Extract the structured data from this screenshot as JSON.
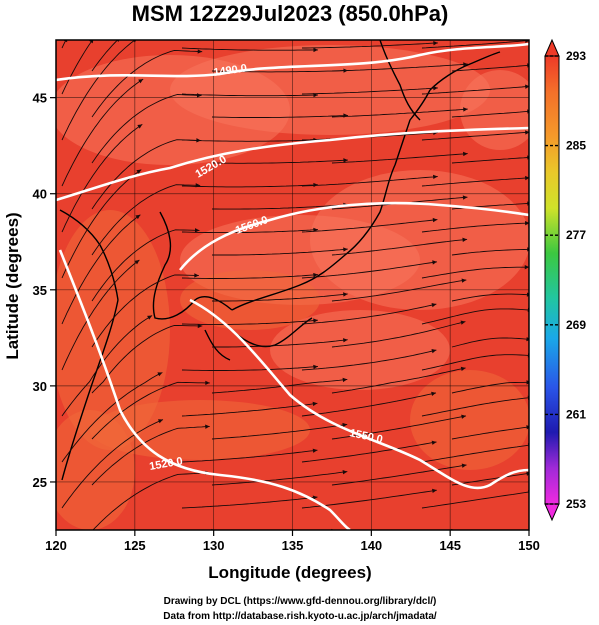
{
  "title": "MSM 12Z29Jul2023 (850.0hPa)",
  "xlabel": "Longitude (degrees)",
  "ylabel": "Latitude  (degrees)",
  "x_ticks": [
    "120",
    "125",
    "130",
    "135",
    "140",
    "145",
    "150"
  ],
  "y_ticks": [
    "25",
    "30",
    "35",
    "40",
    "45"
  ],
  "colorbar": {
    "labels": [
      "293",
      "285",
      "277",
      "269",
      "261",
      "253"
    ],
    "min": 253,
    "max": 293
  },
  "contour_labels": [
    "1490.0",
    "1520.0",
    "1550.0",
    "1560.0",
    "1520.0"
  ],
  "credits": {
    "line1": "Drawing by DCL (https://www.gfd-dennou.org/library/dcl/)",
    "line2": "Data from http://database.rish.kyoto-u.ac.jp/arch/jmadata/"
  },
  "colors": {
    "field_base": "#e8402e",
    "field_warm": "#f06a3a",
    "field_light": "#f7765c",
    "streamline": "#1a0a0a",
    "contour": "#ffffff",
    "coast": "#000000"
  }
}
